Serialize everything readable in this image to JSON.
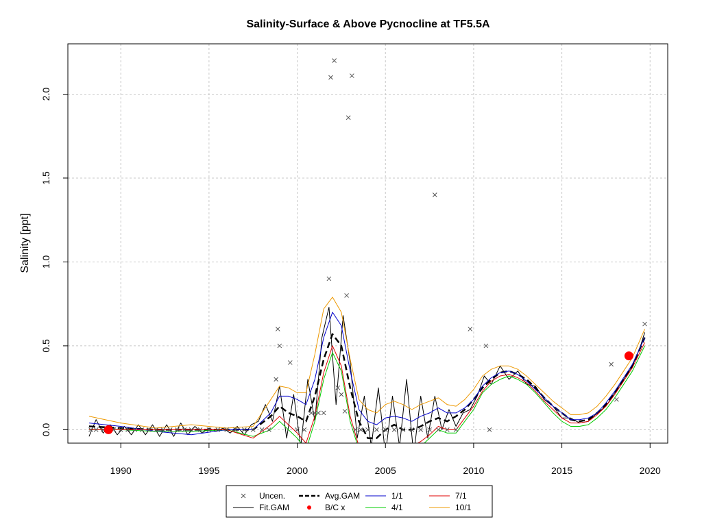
{
  "chart_data": {
    "type": "line",
    "title": "Salinity-Surface & Above Pycnocline at TF5.5A",
    "xlabel": "",
    "ylabel": "Salinity [ppt]",
    "xlim": [
      1987.0,
      2021.0
    ],
    "ylim": [
      -0.08,
      2.3
    ],
    "x_ticks": [
      1990,
      1995,
      2000,
      2005,
      2010,
      2015,
      2020
    ],
    "x_tick_labels": [
      "1990",
      "1995",
      "2000",
      "2005",
      "2010",
      "2015",
      "2020"
    ],
    "y_ticks": [
      0.0,
      0.5,
      1.0,
      1.5,
      2.0
    ],
    "y_tick_labels": [
      "0.0",
      "0.5",
      "1.0",
      "1.5",
      "2.0"
    ],
    "grid": true,
    "legend": {
      "position": "bottom-center",
      "entries": [
        {
          "label": "Uncen.",
          "type": "point-x",
          "color": "#555555"
        },
        {
          "label": "Avg.GAM",
          "type": "line-dashed",
          "color": "#000000"
        },
        {
          "label": "1/1",
          "type": "line",
          "color": "#0000cc"
        },
        {
          "label": "7/1",
          "type": "line",
          "color": "#e00000"
        },
        {
          "label": "Fit.GAM",
          "type": "line",
          "color": "#000000"
        },
        {
          "label": "B/C x",
          "type": "point-dot",
          "color": "#ff0000"
        },
        {
          "label": "4/1",
          "type": "line",
          "color": "#00cc00"
        },
        {
          "label": "10/1",
          "type": "line",
          "color": "#ee9900"
        }
      ]
    },
    "uncensored_points": {
      "x": [
        1988.3,
        1988.6,
        1989.0,
        1989.3,
        1989.6,
        1990.0,
        1990.4,
        1990.8,
        1991.2,
        1991.6,
        1992.0,
        1992.4,
        1992.8,
        1993.2,
        1993.6,
        1994.0,
        1994.5,
        1995.0,
        1995.5,
        1996.0,
        1996.5,
        1997.0,
        1997.5,
        1998.0,
        1998.4,
        1998.8,
        1998.9,
        1999.0,
        1999.6,
        2000.0,
        2000.4,
        2000.8,
        2001.0,
        2001.2,
        2001.5,
        2001.8,
        2001.9,
        2002.1,
        2002.3,
        2002.5,
        2002.7,
        2002.8,
        2002.9,
        2003.1,
        2003.3,
        2003.6,
        2004.0,
        2004.5,
        2005.0,
        2005.5,
        2006.0,
        2006.5,
        2007.0,
        2007.5,
        2007.8,
        2008.0,
        2008.5,
        2009.0,
        2009.8,
        2010.7,
        2010.9,
        2017.8,
        2018.1,
        2019.7
      ],
      "y": [
        0.0,
        0.0,
        0.0,
        0.0,
        0.0,
        0.0,
        0.0,
        0.0,
        0.0,
        0.0,
        0.0,
        0.0,
        0.0,
        0.0,
        0.0,
        0.0,
        0.0,
        0.0,
        0.0,
        0.0,
        0.0,
        0.0,
        0.0,
        0.0,
        0.0,
        0.3,
        0.6,
        0.5,
        0.4,
        0.0,
        0.0,
        0.1,
        0.1,
        0.1,
        0.1,
        0.9,
        2.1,
        2.2,
        0.25,
        0.21,
        0.11,
        0.8,
        1.86,
        2.11,
        0.0,
        0.0,
        0.0,
        0.0,
        0.0,
        0.0,
        0.0,
        0.0,
        0.0,
        0.0,
        1.4,
        0.0,
        0.0,
        0.0,
        0.6,
        0.5,
        0.0,
        0.39,
        0.18,
        0.63
      ]
    },
    "bc_points": {
      "x": [
        1989.3,
        2018.8
      ],
      "y": [
        0.0,
        0.44
      ]
    },
    "series": [
      {
        "name": "Fit.GAM",
        "color": "#000000",
        "dash": "",
        "x": [
          1988.2,
          1988.6,
          1989.0,
          1989.4,
          1989.8,
          1990.2,
          1990.6,
          1991.0,
          1991.4,
          1991.8,
          1992.2,
          1992.6,
          1993.0,
          1993.4,
          1993.8,
          1994.2,
          1994.6,
          1995.0,
          1995.4,
          1995.8,
          1996.2,
          1996.6,
          1997.0,
          1997.4,
          1997.8,
          1998.2,
          1998.6,
          1999.0,
          1999.4,
          1999.8,
          2000.2,
          2000.6,
          2001.0,
          2001.4,
          2001.8,
          2002.2,
          2002.6,
          2003.0,
          2003.4,
          2003.8,
          2004.2,
          2004.6,
          2005.0,
          2005.4,
          2005.8,
          2006.2,
          2006.6,
          2007.0,
          2007.4,
          2007.8,
          2008.2,
          2008.6,
          2009.0,
          2009.4,
          2009.8,
          2010.2,
          2010.6,
          2011.0,
          2011.5,
          2012.0,
          2012.5,
          2013.0,
          2013.5,
          2014.0,
          2014.5,
          2015.0,
          2015.5,
          2016.0,
          2016.5,
          2017.0,
          2017.5,
          2018.0,
          2018.5,
          2019.0,
          2019.4,
          2019.7
        ],
        "y": [
          -0.04,
          0.06,
          -0.02,
          0.03,
          -0.03,
          0.02,
          -0.03,
          0.03,
          -0.03,
          0.03,
          -0.04,
          0.03,
          -0.04,
          0.04,
          -0.03,
          0.02,
          -0.02,
          0.01,
          -0.01,
          0.01,
          -0.02,
          0.02,
          -0.03,
          0.03,
          0.05,
          0.15,
          0.05,
          0.26,
          -0.05,
          0.21,
          -0.1,
          0.3,
          0.05,
          0.55,
          0.73,
          0.15,
          0.68,
          0.4,
          -0.05,
          0.2,
          -0.1,
          0.25,
          -0.15,
          0.2,
          -0.1,
          0.3,
          -0.15,
          0.2,
          -0.05,
          0.2,
          0.0,
          0.12,
          0.02,
          0.1,
          0.12,
          0.2,
          0.32,
          0.27,
          0.38,
          0.3,
          0.35,
          0.27,
          0.26,
          0.18,
          0.14,
          0.07,
          0.07,
          0.04,
          0.05,
          0.1,
          0.14,
          0.22,
          0.3,
          0.38,
          0.48,
          0.58
        ]
      },
      {
        "name": "Avg.GAM",
        "color": "#000000",
        "dash": "9,5",
        "x": [
          1988.2,
          1990.0,
          1992.0,
          1994.0,
          1996.0,
          1997.5,
          1998.5,
          1999.0,
          1999.5,
          2000.0,
          2000.5,
          2001.0,
          2001.5,
          2002.0,
          2002.5,
          2003.0,
          2003.5,
          2004.0,
          2004.5,
          2005.0,
          2005.5,
          2006.0,
          2006.5,
          2007.0,
          2007.5,
          2008.0,
          2008.5,
          2009.0,
          2009.5,
          2010.0,
          2010.5,
          2011.0,
          2011.5,
          2012.0,
          2012.5,
          2013.0,
          2013.5,
          2014.0,
          2014.5,
          2015.0,
          2015.5,
          2016.0,
          2016.5,
          2017.0,
          2017.5,
          2018.0,
          2018.5,
          2019.0,
          2019.7
        ],
        "y": [
          0.02,
          0.01,
          0.0,
          0.0,
          0.0,
          0.0,
          0.08,
          0.14,
          0.1,
          0.08,
          0.05,
          0.2,
          0.42,
          0.57,
          0.5,
          0.25,
          0.05,
          -0.05,
          -0.05,
          0.0,
          0.03,
          0.0,
          0.0,
          0.02,
          0.05,
          0.07,
          0.05,
          0.08,
          0.12,
          0.18,
          0.25,
          0.3,
          0.34,
          0.35,
          0.33,
          0.3,
          0.25,
          0.19,
          0.14,
          0.1,
          0.06,
          0.05,
          0.06,
          0.1,
          0.15,
          0.22,
          0.3,
          0.38,
          0.55
        ]
      },
      {
        "name": "1/1",
        "color": "#0000cc",
        "dash": "",
        "x": [
          1988.2,
          1990.0,
          1992.0,
          1994.0,
          1996.0,
          1997.5,
          1998.5,
          1999.0,
          1999.5,
          2000.0,
          2000.5,
          2001.0,
          2001.5,
          2002.0,
          2002.5,
          2003.0,
          2003.5,
          2004.0,
          2004.5,
          2005.0,
          2005.5,
          2006.0,
          2006.5,
          2007.0,
          2007.5,
          2008.0,
          2008.5,
          2009.0,
          2009.5,
          2010.0,
          2010.5,
          2011.0,
          2011.5,
          2012.0,
          2012.5,
          2013.0,
          2013.5,
          2014.0,
          2014.5,
          2015.0,
          2015.5,
          2016.0,
          2016.5,
          2017.0,
          2017.5,
          2018.0,
          2018.5,
          2019.0,
          2019.7
        ],
        "y": [
          0.04,
          0.02,
          -0.01,
          -0.03,
          0.0,
          0.0,
          0.1,
          0.2,
          0.2,
          0.18,
          0.15,
          0.3,
          0.55,
          0.7,
          0.62,
          0.35,
          0.12,
          0.05,
          0.03,
          0.07,
          0.08,
          0.07,
          0.05,
          0.08,
          0.1,
          0.13,
          0.1,
          0.1,
          0.13,
          0.18,
          0.26,
          0.31,
          0.34,
          0.35,
          0.33,
          0.29,
          0.24,
          0.19,
          0.14,
          0.1,
          0.06,
          0.06,
          0.07,
          0.1,
          0.16,
          0.23,
          0.31,
          0.39,
          0.55
        ]
      },
      {
        "name": "4/1",
        "color": "#00cc00",
        "dash": "",
        "x": [
          1988.2,
          1990.0,
          1992.0,
          1994.0,
          1996.0,
          1997.5,
          1998.5,
          1999.0,
          1999.5,
          2000.0,
          2000.5,
          2001.0,
          2001.5,
          2002.0,
          2002.5,
          2003.0,
          2003.5,
          2004.0,
          2004.5,
          2005.0,
          2005.5,
          2006.0,
          2006.5,
          2007.0,
          2007.5,
          2008.0,
          2008.5,
          2009.0,
          2009.5,
          2010.0,
          2010.5,
          2011.0,
          2011.5,
          2012.0,
          2012.5,
          2013.0,
          2013.5,
          2014.0,
          2014.5,
          2015.0,
          2015.5,
          2016.0,
          2016.5,
          2017.0,
          2017.5,
          2018.0,
          2018.5,
          2019.0,
          2019.7
        ],
        "y": [
          0.0,
          0.0,
          -0.01,
          -0.01,
          0.0,
          -0.04,
          0.0,
          0.05,
          0.0,
          -0.05,
          -0.12,
          0.05,
          0.3,
          0.46,
          0.35,
          0.05,
          -0.12,
          -0.2,
          -0.15,
          -0.12,
          -0.15,
          -0.15,
          -0.12,
          -0.1,
          -0.05,
          0.0,
          -0.02,
          -0.02,
          0.05,
          0.12,
          0.22,
          0.27,
          0.3,
          0.32,
          0.3,
          0.27,
          0.22,
          0.16,
          0.1,
          0.05,
          0.02,
          0.02,
          0.03,
          0.07,
          0.12,
          0.19,
          0.27,
          0.35,
          0.5
        ]
      },
      {
        "name": "7/1",
        "color": "#e00000",
        "dash": "",
        "x": [
          1988.2,
          1990.0,
          1992.0,
          1994.0,
          1996.0,
          1997.5,
          1998.5,
          1999.0,
          1999.5,
          2000.0,
          2000.5,
          2001.0,
          2001.5,
          2002.0,
          2002.5,
          2003.0,
          2003.5,
          2004.0,
          2004.5,
          2005.0,
          2005.5,
          2006.0,
          2006.5,
          2007.0,
          2007.5,
          2008.0,
          2008.5,
          2009.0,
          2009.5,
          2010.0,
          2010.5,
          2011.0,
          2011.5,
          2012.0,
          2012.5,
          2013.0,
          2013.5,
          2014.0,
          2014.5,
          2015.0,
          2015.5,
          2016.0,
          2016.5,
          2017.0,
          2017.5,
          2018.0,
          2018.5,
          2019.0,
          2019.7
        ],
        "y": [
          0.0,
          0.0,
          0.0,
          0.0,
          0.0,
          -0.05,
          0.03,
          0.08,
          0.03,
          -0.02,
          -0.08,
          0.08,
          0.34,
          0.5,
          0.38,
          0.08,
          -0.1,
          -0.18,
          -0.13,
          -0.1,
          -0.13,
          -0.12,
          -0.1,
          -0.07,
          -0.03,
          0.02,
          0.0,
          0.0,
          0.07,
          0.14,
          0.23,
          0.29,
          0.32,
          0.33,
          0.31,
          0.28,
          0.23,
          0.17,
          0.12,
          0.07,
          0.04,
          0.04,
          0.05,
          0.09,
          0.14,
          0.21,
          0.29,
          0.37,
          0.52
        ]
      },
      {
        "name": "10/1",
        "color": "#ee9900",
        "dash": "",
        "x": [
          1988.2,
          1990.0,
          1992.0,
          1994.0,
          1996.0,
          1997.5,
          1998.5,
          1999.0,
          1999.5,
          2000.0,
          2000.5,
          2001.0,
          2001.5,
          2002.0,
          2002.5,
          2003.0,
          2003.5,
          2004.0,
          2004.5,
          2005.0,
          2005.5,
          2006.0,
          2006.5,
          2007.0,
          2007.5,
          2008.0,
          2008.5,
          2009.0,
          2009.5,
          2010.0,
          2010.5,
          2011.0,
          2011.5,
          2012.0,
          2012.5,
          2013.0,
          2013.5,
          2014.0,
          2014.5,
          2015.0,
          2015.5,
          2016.0,
          2016.5,
          2017.0,
          2017.5,
          2018.0,
          2018.5,
          2019.0,
          2019.7
        ],
        "y": [
          0.08,
          0.04,
          0.01,
          0.03,
          0.01,
          0.02,
          0.18,
          0.26,
          0.25,
          0.22,
          0.22,
          0.45,
          0.72,
          0.79,
          0.7,
          0.42,
          0.18,
          0.12,
          0.1,
          0.15,
          0.17,
          0.15,
          0.12,
          0.15,
          0.17,
          0.19,
          0.15,
          0.14,
          0.18,
          0.24,
          0.32,
          0.36,
          0.38,
          0.38,
          0.36,
          0.32,
          0.27,
          0.22,
          0.17,
          0.13,
          0.09,
          0.09,
          0.1,
          0.14,
          0.2,
          0.27,
          0.35,
          0.43,
          0.6
        ]
      }
    ]
  }
}
